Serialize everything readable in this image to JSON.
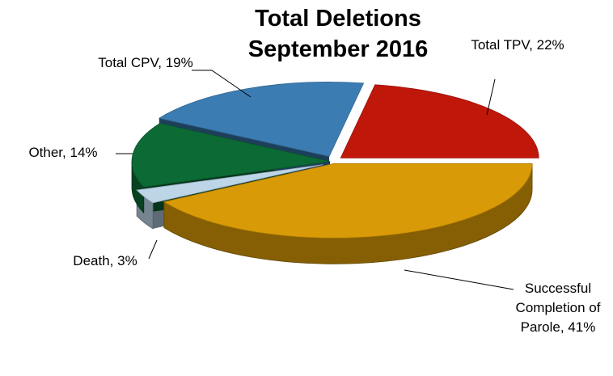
{
  "chart_data": {
    "type": "pie3d",
    "title": "Total Deletions September 2016",
    "categories": [
      "Total TPV,",
      "Successful Completion of Parole,",
      "Death,",
      "Other,",
      "Total CPV,"
    ],
    "values": [
      22,
      41,
      3,
      14,
      19
    ],
    "value_labels": [
      "22%",
      "41%",
      "3%",
      "14%",
      "19%"
    ],
    "colors": [
      "#c0170b",
      "#d89a06",
      "#bcd6e8",
      "#0c6a35",
      "#3b7db3"
    ]
  }
}
